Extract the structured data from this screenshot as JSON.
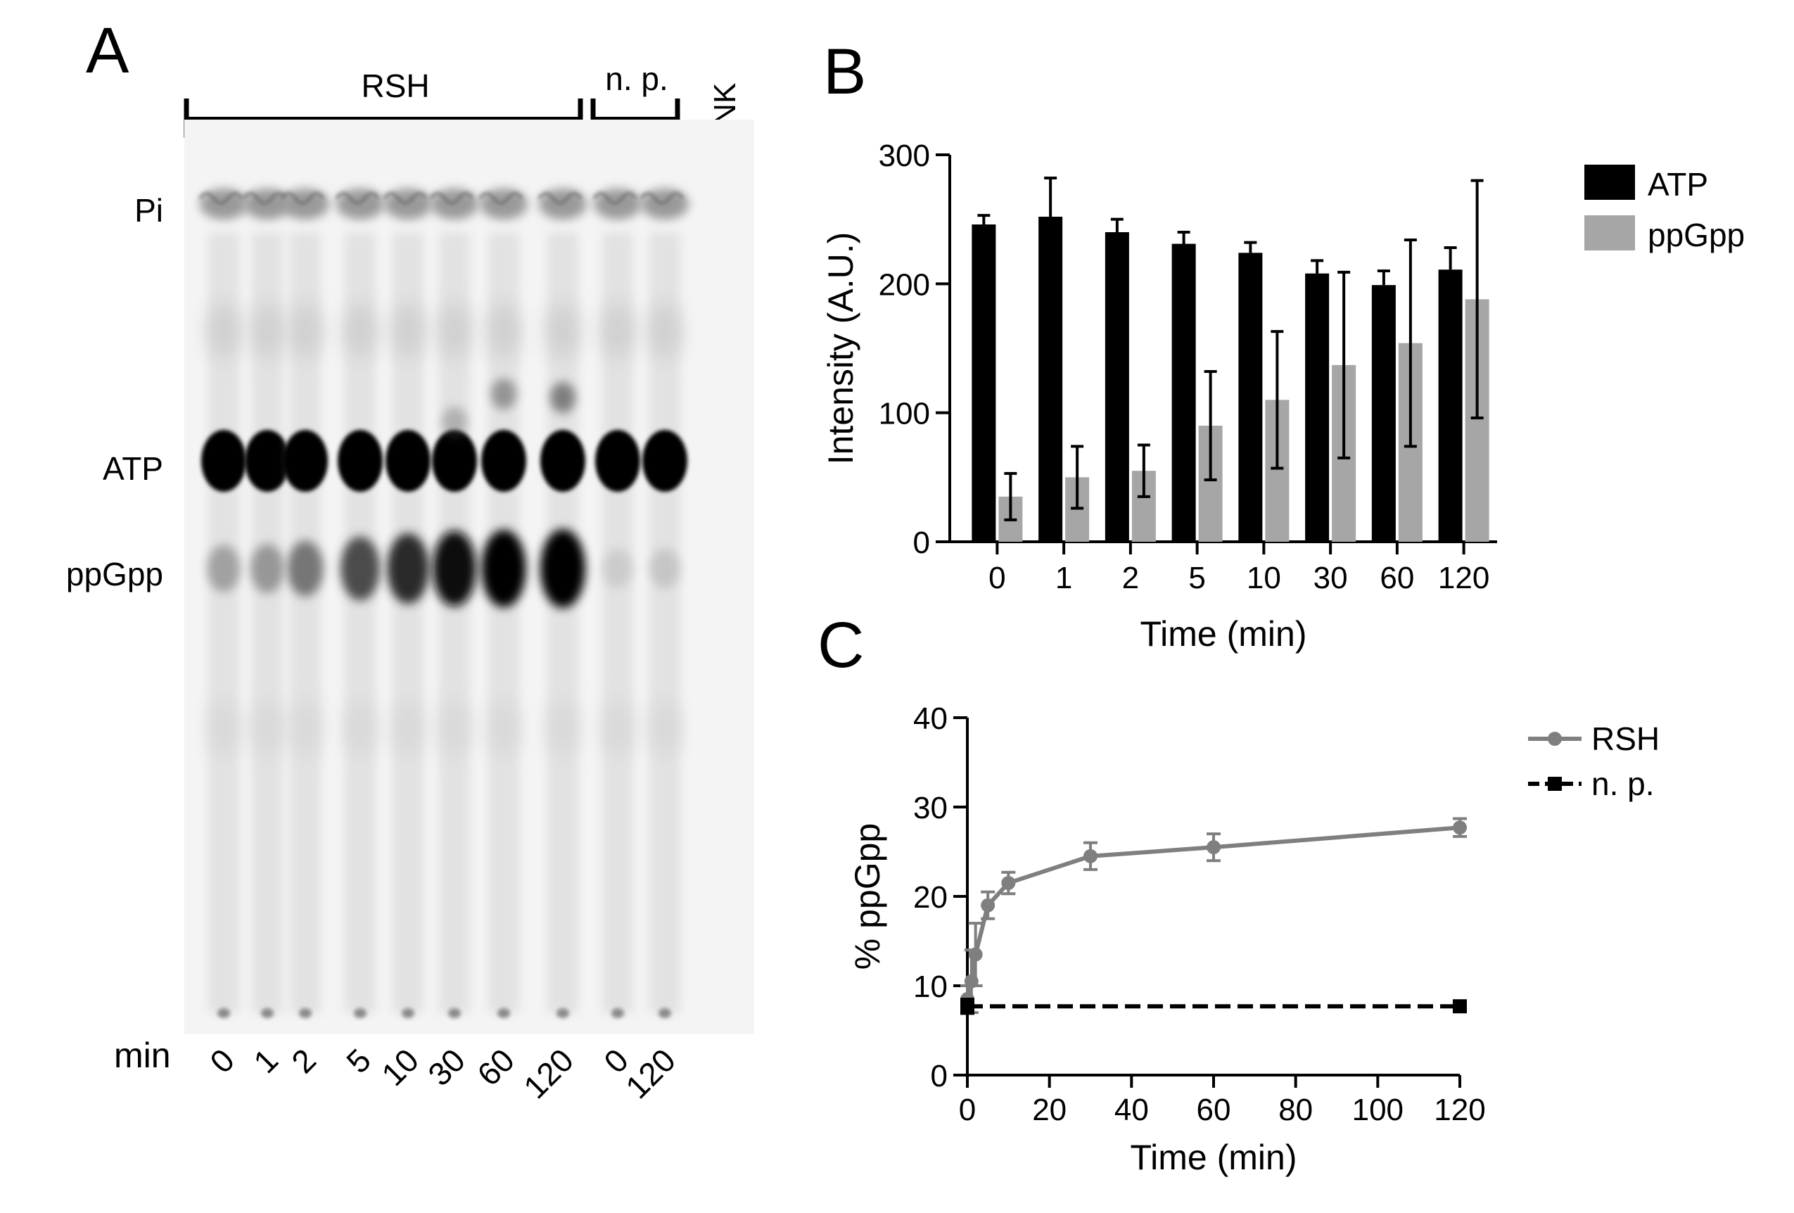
{
  "panel_letters": {
    "a": "A",
    "b": "B",
    "c": "C"
  },
  "gel": {
    "group_labels": {
      "rsh": "RSH",
      "np": "n. p.",
      "blank": "BLANK"
    },
    "row_labels": {
      "pi": "Pi",
      "atp": "ATP",
      "ppgpp": "ppGpp"
    },
    "lane_axis_label": "min",
    "lanes": [
      {
        "label": "0",
        "group": "RSH",
        "ppgpp": 0.25
      },
      {
        "label": "1",
        "group": "RSH",
        "ppgpp": 0.3
      },
      {
        "label": "2",
        "group": "RSH",
        "ppgpp": 0.45
      },
      {
        "label": "5",
        "group": "RSH",
        "ppgpp": 0.65
      },
      {
        "label": "10",
        "group": "RSH",
        "ppgpp": 0.8
      },
      {
        "label": "30",
        "group": "RSH",
        "ppgpp": 0.92
      },
      {
        "label": "60",
        "group": "RSH",
        "ppgpp": 0.97
      },
      {
        "label": "120",
        "group": "RSH",
        "ppgpp": 1.0
      },
      {
        "label": "0",
        "group": "n. p.",
        "ppgpp": 0.05
      },
      {
        "label": "120",
        "group": "n. p.",
        "ppgpp": 0.08
      }
    ]
  },
  "chart_data": [
    {
      "type": "bar",
      "categories": [
        "0",
        "1",
        "2",
        "5",
        "10",
        "30",
        "60",
        "120"
      ],
      "series": [
        {
          "name": "ATP",
          "color": "#000000",
          "values": [
            246,
            252,
            240,
            231,
            224,
            208,
            199,
            211
          ],
          "errors": [
            7,
            30,
            10,
            9,
            8,
            10,
            11,
            17
          ]
        },
        {
          "name": "ppGpp",
          "color": "#a6a6a6",
          "values": [
            35,
            50,
            55,
            90,
            110,
            137,
            154,
            188
          ],
          "errors": [
            18,
            24,
            20,
            42,
            53,
            72,
            80,
            92
          ]
        }
      ],
      "xlabel": "Time (min)",
      "ylabel": "Intensity (A.U.)",
      "ylim": [
        0,
        300
      ],
      "yticks": [
        0,
        100,
        200,
        300
      ],
      "legend": "top-right"
    },
    {
      "type": "line",
      "series": [
        {
          "name": "RSH",
          "color": "#7f7f7f",
          "marker": "circle",
          "dashed": false,
          "x": [
            0,
            1,
            2,
            5,
            10,
            30,
            60,
            120
          ],
          "y": [
            8.5,
            10.5,
            13.5,
            19,
            21.5,
            24.5,
            25.5,
            27.7
          ],
          "errors": [
            1.5,
            3.5,
            3.5,
            1.5,
            1.2,
            1.5,
            1.5,
            1.0
          ]
        },
        {
          "name": "n. p.",
          "color": "#000000",
          "marker": "square",
          "dashed": true,
          "x": [
            0,
            120
          ],
          "y": [
            7.7,
            7.7
          ],
          "errors": [
            0.8,
            0.4
          ]
        }
      ],
      "xlabel": "Time (min)",
      "ylabel": "% ppGpp",
      "xlim": [
        0,
        120
      ],
      "ylim": [
        0,
        40
      ],
      "xticks": [
        0,
        20,
        40,
        60,
        80,
        100,
        120
      ],
      "yticks": [
        0,
        10,
        20,
        30,
        40
      ],
      "legend": "top-right"
    }
  ]
}
